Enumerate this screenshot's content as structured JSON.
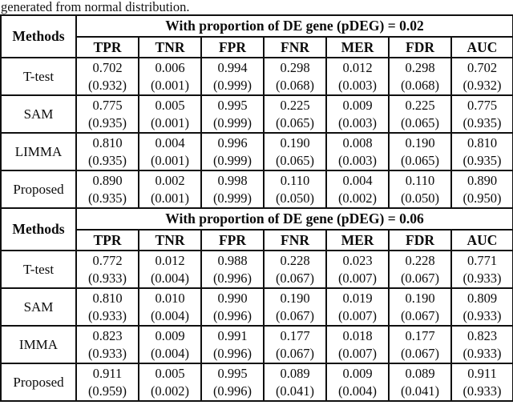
{
  "caption": "generated from normal distribution.",
  "table": {
    "methods_label": "Methods",
    "columns": [
      "TPR",
      "TNR",
      "FPR",
      "FNR",
      "MER",
      "FDR",
      "AUC"
    ],
    "sections": [
      {
        "title": "With proportion of DE gene (pDEG) = 0.02",
        "rows": [
          {
            "method": "T-test",
            "cells": [
              [
                "0.702",
                "(0.932)"
              ],
              [
                "0.006",
                "(0.001)"
              ],
              [
                "0.994",
                "(0.999)"
              ],
              [
                "0.298",
                "(0.068)"
              ],
              [
                "0.012",
                "(0.003)"
              ],
              [
                "0.298",
                "(0.068)"
              ],
              [
                "0.702",
                "(0.932)"
              ]
            ]
          },
          {
            "method": "SAM",
            "cells": [
              [
                "0.775",
                "(0.935)"
              ],
              [
                "0.005",
                "(0.001)"
              ],
              [
                "0.995",
                "(0.999)"
              ],
              [
                "0.225",
                "(0.065)"
              ],
              [
                "0.009",
                "(0.003)"
              ],
              [
                "0.225",
                "(0.065)"
              ],
              [
                "0.775",
                "(0.935)"
              ]
            ]
          },
          {
            "method": "LIMMA",
            "cells": [
              [
                "0.810",
                "(0.935)"
              ],
              [
                "0.004",
                "(0.001)"
              ],
              [
                "0.996",
                "(0.999)"
              ],
              [
                "0.190",
                "(0.065)"
              ],
              [
                "0.008",
                "(0.003)"
              ],
              [
                "0.190",
                "(0.065)"
              ],
              [
                "0.810",
                "(0.935)"
              ]
            ]
          },
          {
            "method": "Proposed",
            "cells": [
              [
                "0.890",
                "(0.935)"
              ],
              [
                "0.002",
                "(0.001)"
              ],
              [
                "0.998",
                "(0.999)"
              ],
              [
                "0.110",
                "(0.050)"
              ],
              [
                "0.004",
                "(0.002)"
              ],
              [
                "0.110",
                "(0.050)"
              ],
              [
                "0.890",
                "(0.950)"
              ]
            ]
          }
        ]
      },
      {
        "title": "With proportion of DE gene (pDEG) = 0.06",
        "rows": [
          {
            "method": "T-test",
            "cells": [
              [
                "0.772",
                "(0.933)"
              ],
              [
                "0.012",
                "(0.004)"
              ],
              [
                "0.988",
                "(0.996)"
              ],
              [
                "0.228",
                "(0.067)"
              ],
              [
                "0.023",
                "(0.007)"
              ],
              [
                "0.228",
                "(0.067)"
              ],
              [
                "0.771",
                "(0.933)"
              ]
            ]
          },
          {
            "method": "SAM",
            "cells": [
              [
                "0.810",
                "(0.933)"
              ],
              [
                "0.010",
                "(0.004)"
              ],
              [
                "0.990",
                "(0.996)"
              ],
              [
                "0.190",
                "(0.067)"
              ],
              [
                "0.019",
                "(0.007)"
              ],
              [
                "0.190",
                "(0.067)"
              ],
              [
                "0.809",
                "(0.933)"
              ]
            ]
          },
          {
            "method": "IMMA",
            "cells": [
              [
                "0.823",
                "(0.933)"
              ],
              [
                "0.009",
                "(0.004)"
              ],
              [
                "0.991",
                "(0.996)"
              ],
              [
                "0.177",
                "(0.067)"
              ],
              [
                "0.018",
                "(0.007)"
              ],
              [
                "0.177",
                "(0.067)"
              ],
              [
                "0.823",
                "(0.933)"
              ]
            ]
          },
          {
            "method": "Proposed",
            "cells": [
              [
                "0.911",
                "(0.959)"
              ],
              [
                "0.005",
                "(0.002)"
              ],
              [
                "0.995",
                "(0.996)"
              ],
              [
                "0.089",
                "(0.041)"
              ],
              [
                "0.009",
                "(0.004)"
              ],
              [
                "0.089",
                "(0.041)"
              ],
              [
                "0.911",
                "(0.933)"
              ]
            ]
          }
        ]
      }
    ]
  }
}
